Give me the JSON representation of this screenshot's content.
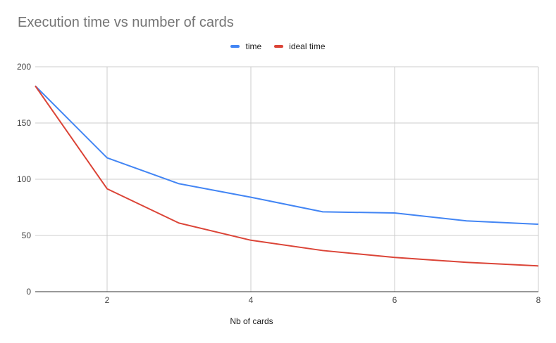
{
  "chart_data": {
    "type": "line",
    "title": "Execution time vs number of cards",
    "xlabel": "Nb of cards",
    "ylabel": "",
    "x": [
      1,
      2,
      3,
      4,
      5,
      6,
      7,
      8
    ],
    "xlim": [
      1,
      8
    ],
    "ylim": [
      0,
      200
    ],
    "x_ticks": [
      2,
      4,
      6,
      8
    ],
    "y_ticks": [
      0,
      50,
      100,
      150,
      200
    ],
    "grid": true,
    "legend_position": "top",
    "series": [
      {
        "name": "time",
        "color": "#4285f4",
        "values": [
          183,
          119,
          96,
          84,
          71,
          70,
          63,
          60
        ]
      },
      {
        "name": "ideal time",
        "color": "#db4437",
        "values": [
          183,
          91.5,
          61,
          45.75,
          36.6,
          30.5,
          26.1,
          22.9
        ]
      }
    ]
  }
}
